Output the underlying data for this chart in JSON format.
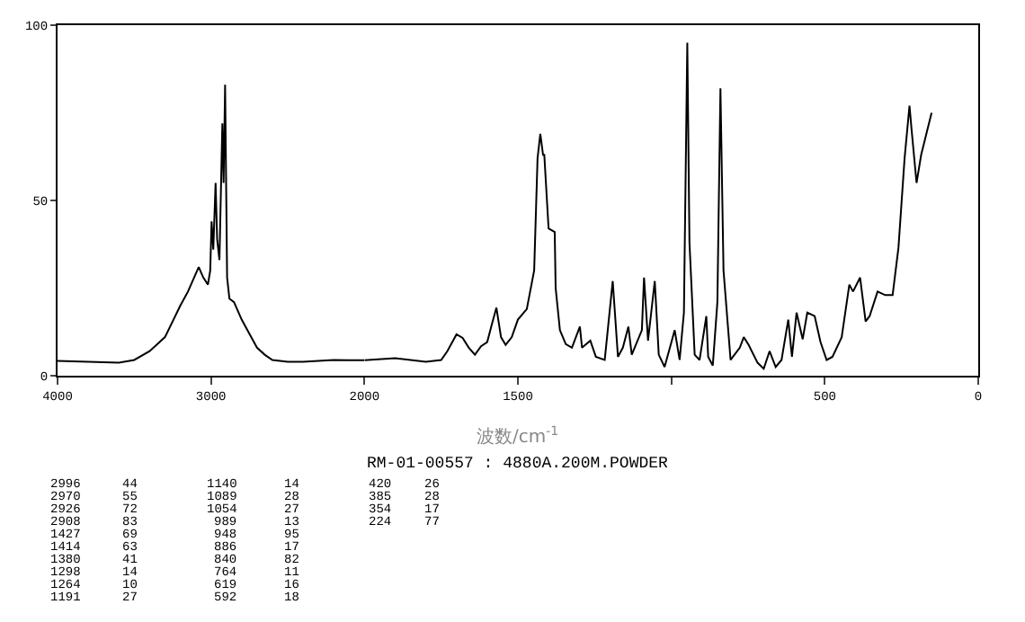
{
  "chart_data": [
    {
      "type": "line",
      "annotations": [
        "2996 44",
        "2970 55",
        "2926 72",
        "2908 83",
        "1427 69",
        "1414 63",
        "1380 41",
        "1298 14",
        "1264 10",
        "1191 27",
        "1140 14",
        "1089 28",
        "1054 27",
        "989 13",
        "948 95",
        "886 17",
        "840 82",
        "764 11",
        "619 16",
        "592 18",
        "420 26",
        "385 28",
        "354 17",
        "224 77"
      ],
      "xlim": [
        4000,
        2000
      ],
      "xticks": [
        4000,
        3000,
        2000
      ],
      "ylim": [
        0,
        100
      ],
      "yticks": [
        0,
        50,
        100
      ],
      "series": [
        {
          "color": "#000000",
          "x": [
            4000,
            3600,
            3500,
            3400,
            3300,
            3200,
            3150,
            3100,
            3080,
            3050,
            3020,
            3005,
            2996,
            2985,
            2970,
            2960,
            2945,
            2926,
            2918,
            2908,
            2895,
            2880,
            2850,
            2800,
            2750,
            2700,
            2650,
            2600,
            2500,
            2400,
            2200,
            2100,
            2000
          ],
          "values": [
            4.2,
            3.7,
            4.5,
            7,
            11,
            20,
            24,
            29,
            31,
            28,
            26,
            30,
            44,
            36,
            55,
            39,
            33,
            72,
            55,
            83,
            28,
            22,
            21,
            16,
            12,
            8,
            6,
            4.5,
            4,
            4,
            4.5,
            4.4,
            4.4
          ]
        }
      ]
    },
    {
      "type": "line",
      "xlabel": "波数/cm$^{-1}$",
      "subtitle": "RM-01-00557 : 4880A.200M.POWDER",
      "xlim": [
        2000,
        0
      ],
      "xticks": [
        1500,
        {
          "value": 1000,
          "label": null
        },
        500,
        0
      ],
      "ylim": [
        0,
        100
      ],
      "tick_labels": "x",
      "series": [
        {
          "color": "#000000",
          "x": [
            2000,
            1900,
            1800,
            1750,
            1730,
            1700,
            1680,
            1660,
            1640,
            1620,
            1600,
            1585,
            1570,
            1555,
            1540,
            1520,
            1500,
            1471,
            1447,
            1436,
            1427,
            1418,
            1414,
            1400,
            1380,
            1377,
            1363,
            1344,
            1324,
            1298,
            1291,
            1264,
            1246,
            1217,
            1191,
            1174,
            1158,
            1140,
            1129,
            1096,
            1089,
            1076,
            1054,
            1041,
            1022,
            989,
            973,
            959,
            948,
            941,
            924,
            908,
            886,
            880,
            865,
            850,
            840,
            830,
            807,
            777,
            764,
            748,
            719,
            699,
            680,
            660,
            641,
            619,
            607,
            592,
            572,
            557,
            533,
            514,
            494,
            475,
            445,
            420,
            408,
            385,
            367,
            354,
            328,
            303,
            279,
            260,
            240,
            224,
            217,
            201,
            186,
            152
          ],
          "values": [
            4.4,
            5,
            4,
            4.5,
            7,
            11.8,
            10.8,
            8,
            6,
            8.4,
            9.6,
            14.6,
            19.4,
            11,
            8.8,
            11,
            16,
            19,
            30,
            62,
            69,
            63,
            63,
            42,
            41,
            25,
            13,
            9,
            8,
            14,
            8,
            10,
            5.4,
            4.5,
            27,
            5.4,
            8,
            14,
            6,
            13,
            28,
            10,
            27,
            6,
            2.5,
            13,
            4.5,
            18,
            95,
            38,
            6,
            4.5,
            17,
            5.4,
            2.9,
            21,
            82,
            30,
            4.5,
            8,
            11,
            8.8,
            3.7,
            2,
            7,
            2.5,
            4.5,
            16,
            5.4,
            18,
            10.4,
            18,
            17,
            9.6,
            4.5,
            5.4,
            11,
            26,
            24,
            28,
            15.5,
            17,
            24,
            23,
            23,
            36.5,
            62,
            77,
            70,
            55,
            63,
            75
          ]
        }
      ]
    }
  ]
}
